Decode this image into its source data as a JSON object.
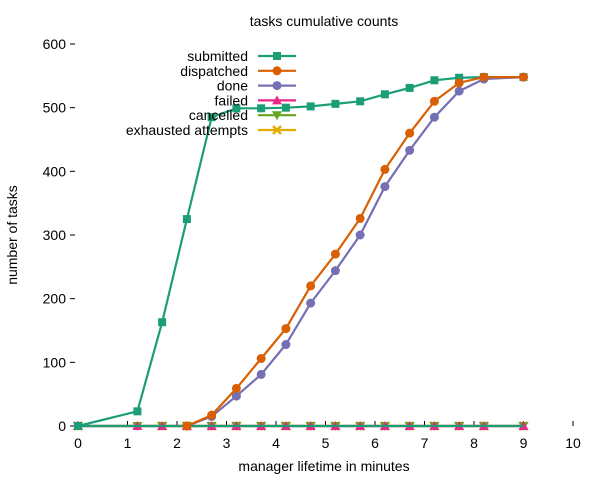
{
  "chart_data": {
    "type": "line",
    "title": "tasks cumulative counts",
    "xlabel": "manager lifetime in minutes",
    "ylabel": "number of tasks",
    "xlim": [
      0,
      10
    ],
    "ylim": [
      0,
      600
    ],
    "xticks": [
      0,
      1,
      2,
      3,
      4,
      5,
      6,
      7,
      8,
      9,
      10
    ],
    "yticks": [
      0,
      100,
      200,
      300,
      400,
      500,
      600
    ],
    "grid": false,
    "legend_position": "top-center",
    "series": [
      {
        "name": "submitted",
        "color": "#1b9e77",
        "marker": "square",
        "x": [
          0,
          1.2,
          1.7,
          2.2,
          2.7,
          3.2,
          3.7,
          4.2,
          4.7,
          5.2,
          5.7,
          6.2,
          6.7,
          7.2,
          7.7,
          8.2,
          9.0
        ],
        "y": [
          0,
          0,
          0,
          0,
          0,
          0,
          0,
          0,
          0,
          0,
          0,
          0,
          0,
          0,
          0,
          0,
          0
        ],
        "x_rise": [
          1.2,
          1.7,
          2.2,
          2.7,
          3.2,
          3.7,
          4.2,
          4.7,
          5.2,
          5.7,
          6.2,
          6.7,
          7.2,
          7.7,
          8.2,
          9.0
        ],
        "y_rise": [
          23,
          163,
          325,
          485,
          499,
          499,
          500,
          502,
          506,
          510,
          521,
          531,
          543,
          547,
          548,
          548
        ]
      },
      {
        "name": "dispatched",
        "color": "#d95f02",
        "marker": "circle",
        "x": [
          2.2,
          2.7,
          3.2,
          3.7,
          4.2,
          4.7,
          5.2,
          5.7,
          6.2,
          6.7,
          7.2,
          7.7,
          8.2,
          9.0
        ],
        "y": [
          0,
          17,
          59,
          106,
          153,
          220,
          270,
          326,
          403,
          460,
          510,
          539,
          548,
          548
        ]
      },
      {
        "name": "done",
        "color": "#7570b3",
        "marker": "circle",
        "x": [
          2.2,
          2.7,
          3.2,
          3.7,
          4.2,
          4.7,
          5.2,
          5.7,
          6.2,
          6.7,
          7.2,
          7.7,
          8.2,
          9.0
        ],
        "y": [
          0,
          15,
          47,
          81,
          128,
          193,
          244,
          300,
          376,
          433,
          485,
          526,
          545,
          548
        ]
      },
      {
        "name": "failed",
        "color": "#e7298a",
        "marker": "triangle",
        "x": [
          0,
          1.2,
          1.7,
          2.2,
          2.7,
          3.2,
          3.7,
          4.2,
          4.7,
          5.2,
          5.7,
          6.2,
          6.7,
          7.2,
          7.7,
          8.2,
          9.0
        ],
        "y": [
          0,
          0,
          0,
          0,
          0,
          0,
          0,
          0,
          0,
          0,
          0,
          0,
          0,
          0,
          0,
          0,
          0
        ]
      },
      {
        "name": "cancelled",
        "color": "#66a61e",
        "marker": "triangle-down",
        "x": [
          0,
          1.2,
          1.7,
          2.2,
          2.7,
          3.2,
          3.7,
          4.2,
          4.7,
          5.2,
          5.7,
          6.2,
          6.7,
          7.2,
          7.7,
          8.2,
          9.0
        ],
        "y": [
          0,
          0,
          0,
          0,
          0,
          0,
          0,
          0,
          0,
          0,
          0,
          0,
          0,
          0,
          0,
          0,
          0
        ]
      },
      {
        "name": "exhausted attempts",
        "color": "#e6ab02",
        "marker": "cross",
        "x": [
          0,
          1.7,
          2.2,
          2.7,
          3.2,
          3.7,
          4.2,
          4.7,
          5.2,
          5.7,
          6.2,
          6.7,
          7.2,
          7.7,
          8.2,
          9.0
        ],
        "y": [
          0,
          0,
          0,
          0,
          0,
          0,
          0,
          0,
          0,
          0,
          0,
          0,
          0,
          0,
          0,
          0
        ]
      }
    ]
  }
}
